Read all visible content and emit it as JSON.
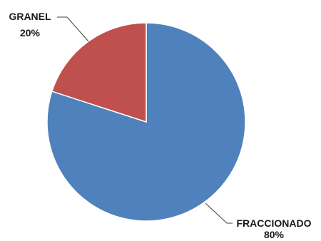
{
  "chart_data": {
    "type": "pie",
    "title": "",
    "categories": [
      "FRACCIONADO",
      "GRANEL"
    ],
    "values": [
      80,
      20
    ],
    "percent_labels": [
      "80%",
      "20%"
    ],
    "colors": [
      "#4F81BD",
      "#C0504D"
    ],
    "start_angle_deg": 0,
    "direction": "clockwise",
    "legend": "none",
    "data_labels": "category and percent, outside with leader lines"
  }
}
